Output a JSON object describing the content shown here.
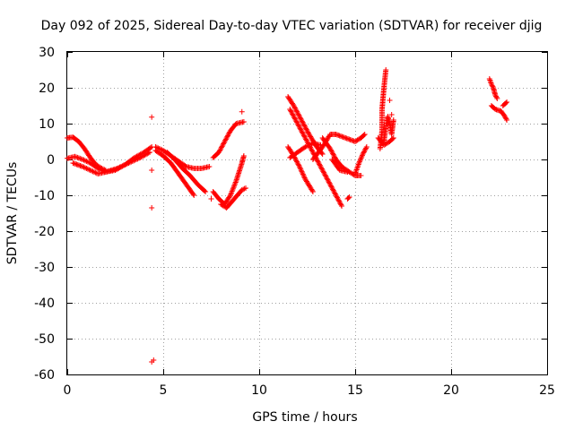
{
  "chart_data": {
    "type": "scatter",
    "title": "Day 092 of 2025, Sidereal Day-to-day VTEC variation (SDTVAR) for receiver djig",
    "xlabel": "GPS time / hours",
    "ylabel": "SDTVAR / TECUs",
    "xlim": [
      0,
      25
    ],
    "ylim": [
      -60,
      30
    ],
    "xticks": [
      0,
      5,
      10,
      15,
      20,
      25
    ],
    "yticks": [
      -60,
      -50,
      -40,
      -30,
      -20,
      -10,
      0,
      10,
      20,
      30
    ],
    "grid": true,
    "legend": "none",
    "marker": "+",
    "color": "#ff0000",
    "series": [
      {
        "tracks": [
          [
            [
              0.0,
              6.0
            ],
            [
              0.3,
              6.2
            ],
            [
              0.6,
              5.0
            ],
            [
              0.9,
              3.0
            ],
            [
              1.2,
              0.5
            ],
            [
              1.5,
              -1.5
            ],
            [
              1.8,
              -2.5
            ],
            [
              2.0,
              -3.0
            ]
          ],
          [
            [
              0.0,
              0.3
            ],
            [
              0.4,
              0.8
            ],
            [
              0.8,
              0.0
            ],
            [
              1.2,
              -1.0
            ],
            [
              1.6,
              -2.5
            ],
            [
              2.0,
              -3.5
            ],
            [
              2.5,
              -3.0
            ],
            [
              3.0,
              -1.5
            ],
            [
              3.5,
              0.5
            ],
            [
              4.0,
              2.0
            ],
            [
              4.4,
              3.5
            ]
          ],
          [
            [
              0.3,
              -1.0
            ],
            [
              0.8,
              -2.0
            ],
            [
              1.2,
              -3.0
            ],
            [
              1.6,
              -4.0
            ],
            [
              2.0,
              -3.5
            ],
            [
              2.6,
              -2.5
            ],
            [
              3.2,
              -1.0
            ],
            [
              3.8,
              0.5
            ],
            [
              4.3,
              2.0
            ]
          ],
          [
            [
              4.6,
              3.5
            ],
            [
              5.0,
              2.5
            ],
            [
              5.4,
              1.0
            ],
            [
              5.8,
              -0.5
            ],
            [
              6.2,
              -2.0
            ],
            [
              6.6,
              -2.5
            ],
            [
              7.0,
              -2.5
            ],
            [
              7.4,
              -2.0
            ]
          ],
          [
            [
              4.6,
              2.5
            ],
            [
              5.0,
              1.0
            ],
            [
              5.4,
              -1.0
            ],
            [
              5.8,
              -4.0
            ],
            [
              6.2,
              -7.0
            ],
            [
              6.6,
              -10.0
            ]
          ],
          [
            [
              5.2,
              2.0
            ],
            [
              5.6,
              0.0
            ],
            [
              6.0,
              -2.5
            ],
            [
              6.4,
              -4.5
            ],
            [
              6.8,
              -7.0
            ],
            [
              7.2,
              -9.0
            ]
          ],
          [
            [
              7.6,
              0.5
            ],
            [
              7.9,
              2.0
            ],
            [
              8.2,
              5.0
            ],
            [
              8.5,
              8.0
            ],
            [
              8.8,
              10.0
            ],
            [
              9.2,
              10.5
            ]
          ],
          [
            [
              7.6,
              -9.0
            ],
            [
              7.9,
              -11.0
            ],
            [
              8.2,
              -12.5
            ],
            [
              8.5,
              -10.0
            ],
            [
              8.8,
              -6.0
            ],
            [
              9.1,
              -1.0
            ],
            [
              9.2,
              1.0
            ]
          ],
          [
            [
              8.0,
              -12.5
            ],
            [
              8.3,
              -13.5
            ],
            [
              8.7,
              -11.0
            ],
            [
              9.1,
              -8.5
            ],
            [
              9.3,
              -8.0
            ]
          ],
          [
            [
              11.5,
              17.5
            ],
            [
              11.8,
              15.0
            ],
            [
              12.2,
              11.0
            ],
            [
              12.6,
              7.0
            ],
            [
              13.0,
              3.5
            ],
            [
              13.3,
              1.5
            ]
          ],
          [
            [
              11.6,
              14.0
            ],
            [
              12.0,
              10.0
            ],
            [
              12.5,
              5.0
            ],
            [
              13.0,
              0.0
            ],
            [
              13.5,
              -5.0
            ],
            [
              14.0,
              -10.0
            ],
            [
              14.3,
              -13.0
            ]
          ],
          [
            [
              11.5,
              3.5
            ],
            [
              11.8,
              1.0
            ],
            [
              12.1,
              -2.0
            ],
            [
              12.4,
              -5.5
            ],
            [
              12.8,
              -9.0
            ]
          ],
          [
            [
              11.6,
              0.5
            ],
            [
              12.0,
              2.0
            ],
            [
              12.4,
              3.5
            ],
            [
              12.8,
              4.5
            ],
            [
              13.2,
              4.0
            ]
          ],
          [
            [
              12.8,
              0.0
            ],
            [
              13.3,
              3.5
            ],
            [
              13.7,
              7.0
            ],
            [
              14.0,
              7.0
            ],
            [
              14.5,
              6.0
            ],
            [
              15.0,
              5.0
            ],
            [
              15.3,
              6.0
            ],
            [
              15.5,
              7.0
            ]
          ],
          [
            [
              13.3,
              6.0
            ],
            [
              13.7,
              3.0
            ],
            [
              14.0,
              0.0
            ],
            [
              14.3,
              -2.0
            ],
            [
              14.7,
              -3.5
            ],
            [
              15.0,
              -4.5
            ],
            [
              15.3,
              -4.5
            ]
          ],
          [
            [
              13.8,
              0.0
            ],
            [
              14.2,
              -3.0
            ],
            [
              14.6,
              -3.5
            ]
          ],
          [
            [
              14.6,
              -11.0
            ],
            [
              14.7,
              -10.5
            ]
          ],
          [
            [
              15.0,
              -4.0
            ],
            [
              15.2,
              -1.0
            ],
            [
              15.4,
              1.5
            ],
            [
              15.6,
              3.5
            ]
          ],
          [
            [
              16.3,
              3.0
            ],
            [
              16.4,
              8.0
            ],
            [
              16.4,
              14.0
            ],
            [
              16.5,
              20.0
            ],
            [
              16.6,
              25.0
            ]
          ],
          [
            [
              16.5,
              5.0
            ],
            [
              16.6,
              9.0
            ],
            [
              16.7,
              12.0
            ],
            [
              16.8,
              10.0
            ],
            [
              16.9,
              7.0
            ],
            [
              17.0,
              11.0
            ]
          ],
          [
            [
              16.2,
              6.0
            ],
            [
              16.5,
              4.0
            ],
            [
              16.8,
              5.0
            ],
            [
              17.0,
              6.0
            ]
          ],
          [
            [
              22.0,
              22.5
            ],
            [
              22.1,
              21.0
            ],
            [
              22.2,
              20.0
            ],
            [
              22.3,
              18.0
            ],
            [
              22.4,
              17.0
            ]
          ],
          [
            [
              22.1,
              15.0
            ],
            [
              22.3,
              14.0
            ],
            [
              22.6,
              13.5
            ],
            [
              22.8,
              12.0
            ],
            [
              22.9,
              11.0
            ]
          ],
          [
            [
              22.7,
              15.0
            ],
            [
              22.9,
              16.0
            ]
          ]
        ]
      },
      {
        "points": [
          [
            4.4,
            11.8
          ],
          [
            4.4,
            -3.0
          ],
          [
            4.4,
            -13.5
          ],
          [
            4.4,
            -56.5
          ],
          [
            4.5,
            -56.0
          ],
          [
            7.5,
            -11.0
          ],
          [
            9.1,
            13.3
          ],
          [
            16.8,
            16.5
          ],
          [
            16.9,
            12.5
          ]
        ]
      }
    ]
  }
}
